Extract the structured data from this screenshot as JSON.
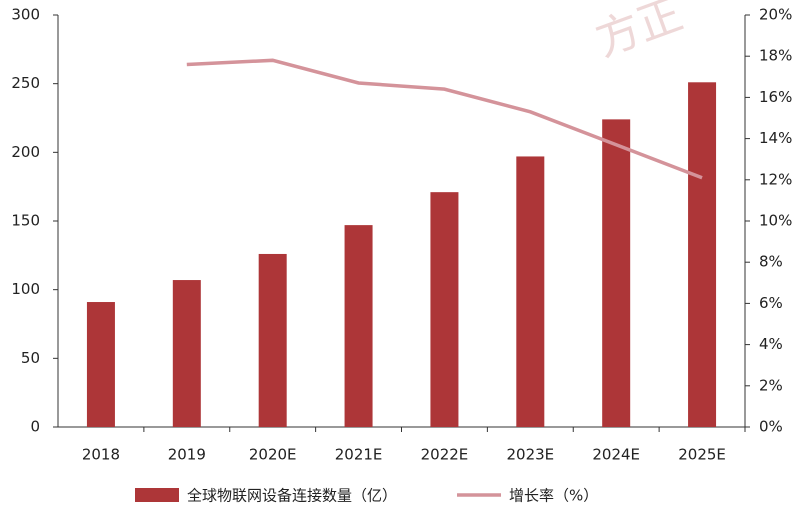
{
  "chart_data": {
    "type": "combo",
    "watermark": "方正",
    "categories": [
      "2018",
      "2019",
      "2020E",
      "2021E",
      "2022E",
      "2023E",
      "2024E",
      "2025E"
    ],
    "series": [
      {
        "name": "全球物联网设备连接数量（亿）",
        "type": "bar",
        "color": "#ad3638",
        "values": [
          91,
          107,
          126,
          147,
          171,
          197,
          224,
          251
        ]
      },
      {
        "name": "增长率（%）",
        "type": "line",
        "axis": "y2",
        "color": "#d4939a",
        "values": [
          null,
          17.6,
          17.8,
          16.7,
          16.4,
          15.3,
          13.7,
          12.1
        ]
      }
    ],
    "ylim": [
      0,
      300
    ],
    "yticks": [
      0,
      50,
      100,
      150,
      200,
      250,
      300
    ],
    "y2lim": [
      0,
      20
    ],
    "y2ticks": [
      {
        "value": 0,
        "label": "0%"
      },
      {
        "value": 2,
        "label": "2%"
      },
      {
        "value": 4,
        "label": "4%"
      },
      {
        "value": 6,
        "label": "6%"
      },
      {
        "value": 8,
        "label": "8%"
      },
      {
        "value": 10,
        "label": "10%"
      },
      {
        "value": 12,
        "label": "12%"
      },
      {
        "value": 14,
        "label": "14%"
      },
      {
        "value": 16,
        "label": "16%"
      },
      {
        "value": 18,
        "label": "18%"
      },
      {
        "value": 20,
        "label": "20%"
      }
    ],
    "grid": false
  }
}
